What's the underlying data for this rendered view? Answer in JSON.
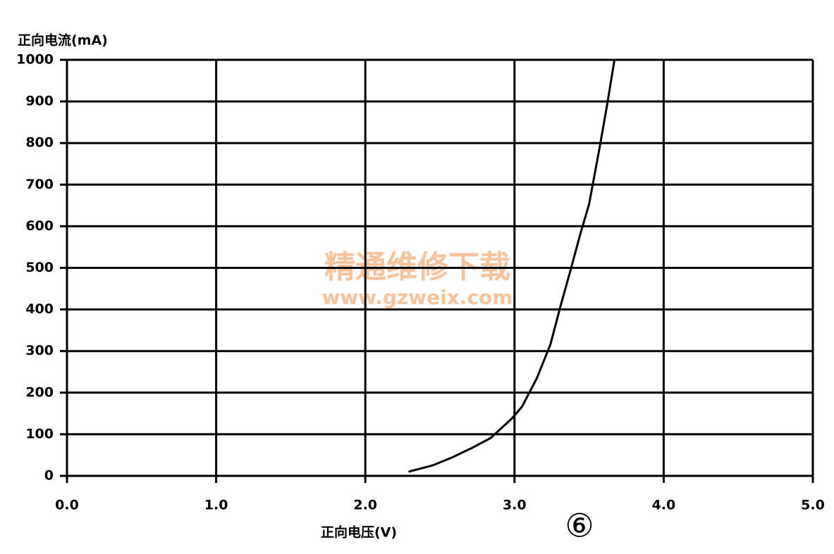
{
  "chart_data": {
    "type": "line",
    "y_label": "正向电流(mA)",
    "x_label": "正向电压(V)",
    "annotation": "⑥",
    "watermark": [
      "精通维修下载",
      "www.gzweix.com"
    ],
    "x": [
      2.29,
      2.45,
      2.58,
      2.72,
      2.84,
      2.98,
      3.05,
      3.15,
      3.24,
      3.31,
      3.38,
      3.44,
      3.5,
      3.57,
      3.62,
      3.67
    ],
    "values": [
      10,
      25,
      44,
      68,
      91,
      137,
      166,
      235,
      315,
      410,
      500,
      580,
      653,
      788,
      890,
      1000
    ],
    "color": "#000000",
    "xlim": [
      0,
      5
    ],
    "ylim": [
      0,
      1000
    ],
    "xticks": [
      {
        "value": 0,
        "label": "0.0"
      },
      {
        "value": 1,
        "label": "1.0"
      },
      {
        "value": 2,
        "label": "2.0"
      },
      {
        "value": 3,
        "label": "3.0"
      },
      {
        "value": 4,
        "label": "4.0"
      },
      {
        "value": 5,
        "label": "5.0"
      }
    ],
    "yticks": [
      0,
      100,
      200,
      300,
      400,
      500,
      600,
      700,
      800,
      900,
      1000
    ],
    "grid": true
  }
}
